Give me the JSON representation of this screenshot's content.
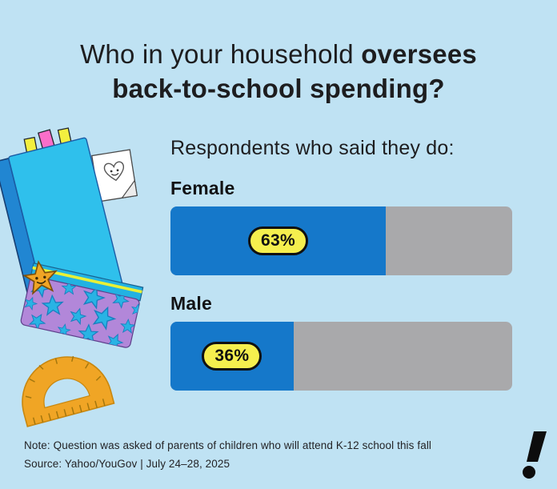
{
  "title": {
    "line1_regular": "Who in your household ",
    "line1_bold": "oversees",
    "line2_bold": "back-to-school spending?"
  },
  "subtitle": "Respondents who said they do:",
  "chart_data": {
    "type": "bar",
    "orientation": "horizontal",
    "title": "Who in your household oversees back-to-school spending?",
    "subtitle": "Respondents who said they do:",
    "categories": [
      "Female",
      "Male"
    ],
    "values": [
      63,
      36
    ],
    "value_labels": [
      "63%",
      "36%"
    ],
    "unit": "%",
    "xlim": [
      0,
      100
    ],
    "grid": false,
    "legend": "none",
    "bar_color": "#1578ca",
    "track_color": "#a9a9ab",
    "value_pill_color": "#f5ef4e"
  },
  "bars": [
    {
      "label": "Female",
      "value": 63,
      "value_label": "63%"
    },
    {
      "label": "Male",
      "value": 36,
      "value_label": "36%"
    }
  ],
  "footer": {
    "note": "Note: Question was asked of parents of children who will attend K-12 school this fall",
    "source": "Source: Yahoo/YouGov | July 24–28, 2025"
  },
  "branding": {
    "mark": "!",
    "name": "yahoo-exclamation-logo"
  },
  "colors": {
    "background": "#bfe2f3",
    "text": "#1d1d1f",
    "bar_blue": "#1578ca",
    "track_gray": "#a9a9ab",
    "pill_yellow": "#f5ef4e",
    "notebook_cyan": "#2fc0ec",
    "spine_blue": "#2186d2",
    "case_purple": "#b287d9",
    "star_cyan": "#29b3e4",
    "gold": "#f0a525"
  },
  "illustration": {
    "items": [
      "notebook-icon",
      "bookmark-tabs-icon",
      "heart-note-icon",
      "pencil-case-icon",
      "star-face-icon",
      "protractor-icon"
    ]
  }
}
